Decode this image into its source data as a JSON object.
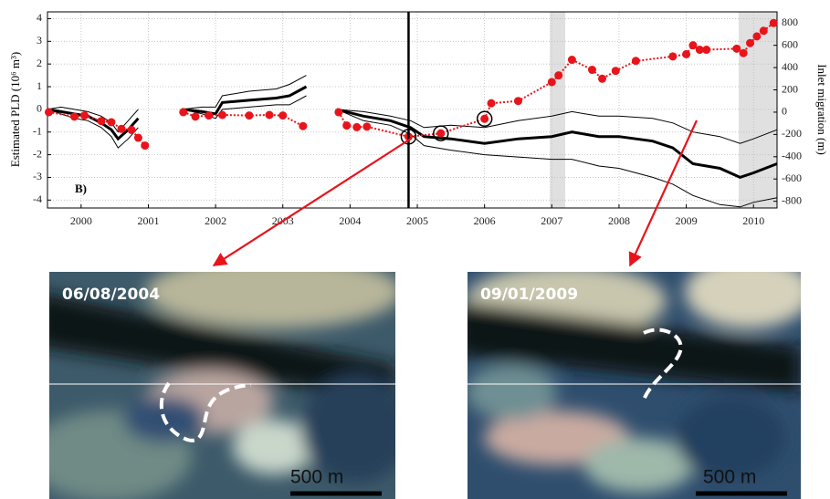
{
  "chart_data": {
    "type": "line",
    "panel_label": "B)",
    "y_label": "Estimated PLD (10⁶ m³)",
    "y2_label": "Inlet migration (m)",
    "xlim": [
      1999.5,
      2010.35
    ],
    "xticks": [
      2000,
      2001,
      2002,
      2003,
      2004,
      2005,
      2006,
      2007,
      2008,
      2009,
      2010
    ],
    "ylim": [
      -4.35,
      4.3
    ],
    "yticks": [
      -4,
      -3,
      -2,
      -1,
      0,
      1,
      2,
      3,
      4
    ],
    "y2lim": [
      -860,
      900
    ],
    "y2ticks": [
      -800,
      -600,
      -400,
      -200,
      0,
      200,
      400,
      600,
      800
    ],
    "grid": true,
    "marker_line_x": 2004.87,
    "shaded_spans": [
      [
        2006.97,
        2007.2
      ],
      [
        2009.78,
        2010.35
      ]
    ],
    "series": [
      {
        "color": "#000000",
        "line_width": 1,
        "x": [
          1999.5,
          1999.7,
          1999.9,
          2000.1,
          2000.3,
          2000.45,
          2000.55,
          2000.7,
          2000.85,
          2001.2,
          2001.5,
          2001.8,
          2002.0,
          2002.1,
          2002.5,
          2002.9,
          2003.1,
          2003.35,
          2003.6,
          2003.8,
          2004.2,
          2004.6,
          2004.9,
          2005.1,
          2005.5,
          2006.0,
          2006.5,
          2007.0,
          2007.3,
          2007.7,
          2008.0,
          2008.5,
          2008.8,
          2009.1,
          2009.5,
          2009.8,
          2010.0,
          2010.35
        ],
        "values": [
          0,
          0.1,
          0,
          -0.1,
          -0.3,
          -0.6,
          -1.0,
          -0.5,
          0,
          null,
          0,
          0.1,
          0.1,
          0.6,
          0.8,
          0.9,
          1.1,
          1.5,
          null,
          0,
          -0.1,
          -0.3,
          -0.5,
          -0.8,
          -0.7,
          -0.8,
          -0.5,
          -0.3,
          -0.1,
          -0.3,
          -0.3,
          -0.4,
          -0.6,
          -1.0,
          -1.2,
          -1.5,
          -1.3,
          -0.9
        ]
      },
      {
        "color": "#000000",
        "line_width": 1,
        "x": [
          1999.5,
          1999.7,
          1999.9,
          2000.1,
          2000.3,
          2000.45,
          2000.55,
          2000.7,
          2000.85,
          2001.2,
          2001.5,
          2001.8,
          2002.0,
          2002.1,
          2002.5,
          2002.9,
          2003.1,
          2003.35,
          2003.6,
          2003.8,
          2004.2,
          2004.6,
          2004.9,
          2005.1,
          2005.5,
          2006.0,
          2006.5,
          2007.0,
          2007.3,
          2007.7,
          2008.0,
          2008.5,
          2008.8,
          2009.1,
          2009.5,
          2009.8,
          2010.0,
          2010.35
        ],
        "values": [
          0,
          -0.2,
          -0.4,
          -0.5,
          -0.8,
          -1.2,
          -1.7,
          -1.3,
          -0.8,
          null,
          0,
          -0.2,
          -0.4,
          0,
          0.1,
          0.2,
          0.2,
          0.6,
          null,
          0,
          -0.5,
          -0.7,
          -1.1,
          -1.6,
          -1.8,
          -2.0,
          -2.1,
          -2.2,
          -2.2,
          -2.5,
          -2.6,
          -3.0,
          -3.3,
          -3.8,
          -4.2,
          -4.3,
          -4.1,
          -3.9
        ]
      },
      {
        "color": "#000000",
        "line_width": 3,
        "x": [
          1999.5,
          1999.7,
          1999.9,
          2000.1,
          2000.3,
          2000.45,
          2000.55,
          2000.7,
          2000.85,
          2001.2,
          2001.5,
          2001.8,
          2002.0,
          2002.1,
          2002.5,
          2002.9,
          2003.1,
          2003.35,
          2003.6,
          2003.8,
          2004.2,
          2004.6,
          2004.9,
          2005.1,
          2005.5,
          2006.0,
          2006.5,
          2007.0,
          2007.3,
          2007.7,
          2008.0,
          2008.5,
          2008.8,
          2009.1,
          2009.5,
          2009.8,
          2010.0,
          2010.35
        ],
        "values": [
          0,
          -0.1,
          -0.2,
          -0.3,
          -0.6,
          -0.9,
          -1.3,
          -0.9,
          -0.4,
          null,
          0,
          -0.1,
          -0.2,
          0.3,
          0.4,
          0.5,
          0.6,
          1.0,
          null,
          0,
          -0.3,
          -0.5,
          -0.8,
          -1.2,
          -1.3,
          -1.5,
          -1.3,
          -1.2,
          -1.0,
          -1.2,
          -1.2,
          -1.4,
          -1.7,
          -2.4,
          -2.6,
          -3.0,
          -2.8,
          -2.4
        ]
      },
      {
        "color": "#e8141b",
        "line_width": 2,
        "dashed": true,
        "markers": true,
        "axis": "y2",
        "circled": [
          23,
          24,
          25
        ],
        "x": [
          1999.52,
          1999.9,
          2000.05,
          2000.3,
          2000.45,
          2000.6,
          2000.75,
          2000.85,
          2000.95,
          2001.2,
          2001.52,
          2001.7,
          2001.9,
          2002.1,
          2002.5,
          2002.8,
          2003.0,
          2003.3,
          2003.6,
          2003.83,
          2003.95,
          2004.1,
          2004.25,
          2004.87,
          2005.35,
          2006.0,
          2006.1,
          2006.5,
          2007.0,
          2007.1,
          2007.3,
          2007.6,
          2007.75,
          2007.95,
          2008.25,
          2008.8,
          2009.0,
          2009.1,
          2009.2,
          2009.3,
          2009.75,
          2009.85,
          2009.95,
          2010.05,
          2010.15,
          2010.3
        ],
        "values": [
          0,
          -40,
          -30,
          -80,
          -90,
          -150,
          -160,
          -230,
          -300,
          null,
          0,
          -40,
          -30,
          -25,
          -30,
          -25,
          -30,
          -125,
          null,
          0,
          -120,
          -135,
          -130,
          -220,
          -190,
          -60,
          80,
          100,
          270,
          330,
          470,
          380,
          300,
          370,
          460,
          500,
          520,
          600,
          560,
          560,
          570,
          530,
          620,
          680,
          730,
          800
        ]
      }
    ]
  },
  "photos": [
    {
      "date": "06/08/2004",
      "scale": "500 m"
    },
    {
      "date": "09/01/2009",
      "scale": "500 m"
    }
  ]
}
